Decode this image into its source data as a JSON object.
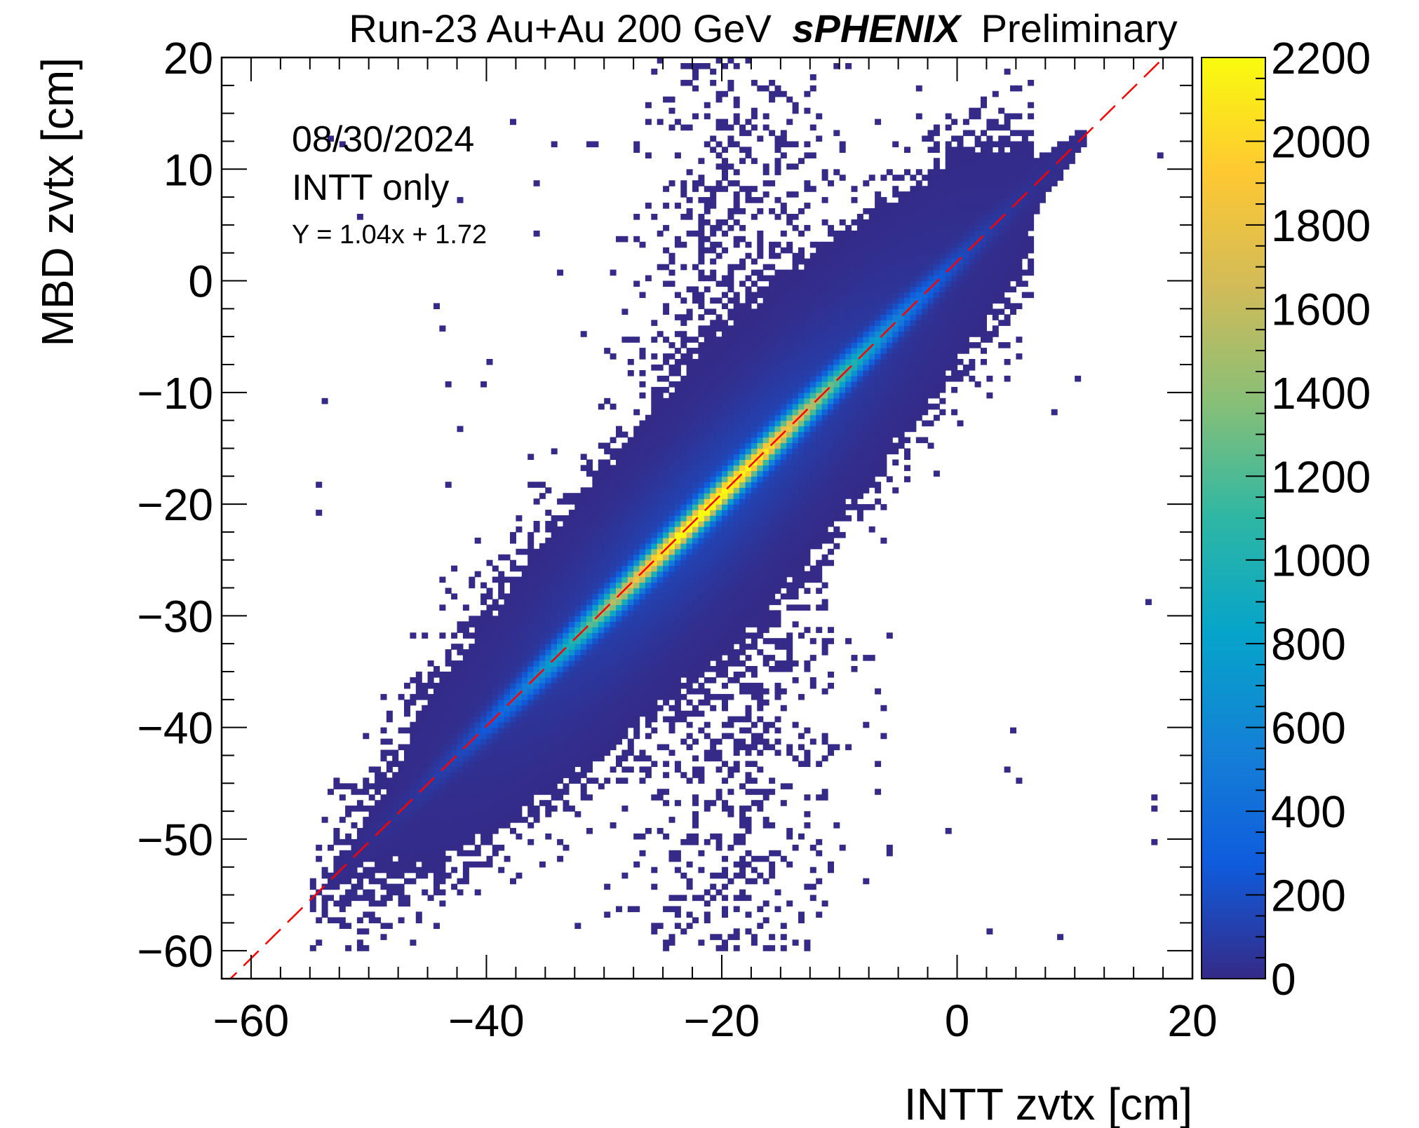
{
  "chart_data": {
    "type": "heatmap",
    "title": "Run-23 Au+Au 200 GeV",
    "title_bold": "sPHENIX",
    "title_suffix": "Preliminary",
    "xlabel": "INTT zvtx [cm]",
    "ylabel": "MBD zvtx [cm]",
    "xlim": [
      -62.5,
      20
    ],
    "ylim": [
      -62.5,
      20
    ],
    "x_ticks": [
      -60,
      -40,
      -20,
      0,
      20
    ],
    "y_ticks": [
      20,
      10,
      0,
      -10,
      -20,
      -30,
      -40,
      -50,
      -60
    ],
    "x_tick_labels": [
      "−60",
      "−40",
      "−20",
      "0",
      "20"
    ],
    "y_tick_labels": [
      "20",
      "10",
      "0",
      "−10",
      "−20",
      "−30",
      "−40",
      "−50",
      "−60"
    ],
    "colorbar": {
      "range": [
        0,
        2200
      ],
      "ticks": [
        0,
        200,
        400,
        600,
        800,
        1000,
        1200,
        1400,
        1600,
        1800,
        2000,
        2200
      ],
      "palette": [
        "#352a87",
        "#0f5cdd",
        "#1481d6",
        "#06a4ca",
        "#2eb7a4",
        "#87bf77",
        "#d1bb59",
        "#fec832",
        "#f9fb0e"
      ]
    },
    "annotations": {
      "date": "08/30/2024",
      "selection": "INTT only",
      "fit": "Y = 1.04x + 1.72"
    },
    "fit_line": {
      "slope": 1.04,
      "intercept": 1.72,
      "color": "#ff0000",
      "style": "dashed"
    },
    "distribution": {
      "description_center_x": -21.0,
      "peak_counts": 2200,
      "core_width_perp_cm": 0.9,
      "x_extent": [
        -55,
        5
      ],
      "bin_size_cm": 0.5
    }
  }
}
